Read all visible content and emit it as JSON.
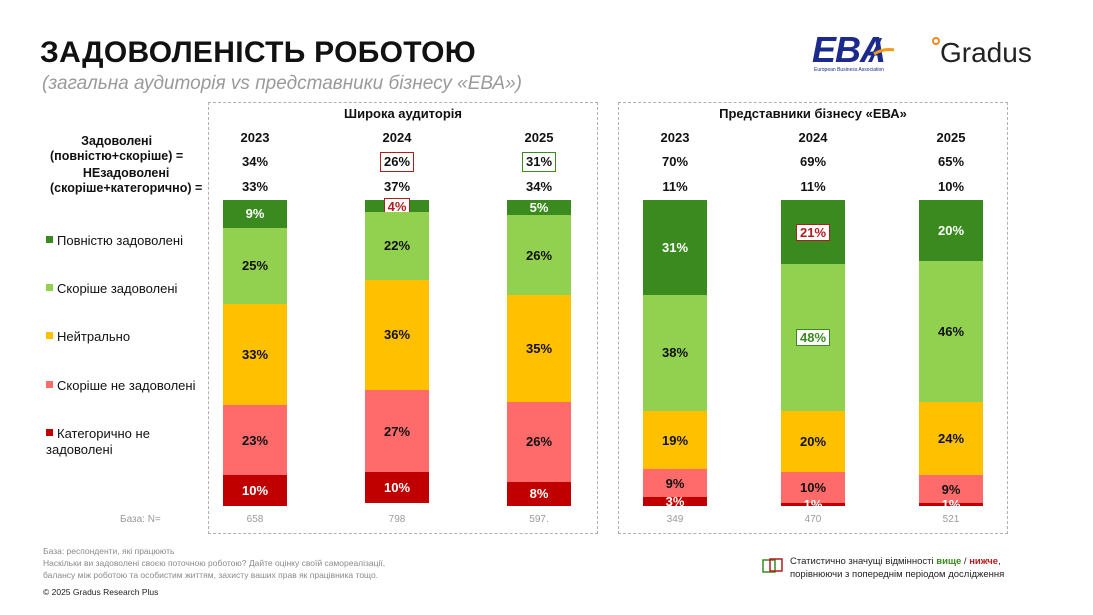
{
  "title": "ЗАДОВОЛЕНІСТЬ РОБОТОЮ",
  "subtitle": "(загальна аудиторія vs представники бізнесу «ЕВА»)",
  "logos": {
    "eba": "EBA",
    "eba_sub": "European Business Association",
    "gradus": "Gradus"
  },
  "row_labels": {
    "satisfied": "Задоволені\n(повністю+скоріше) =",
    "unsatisfied": "НЕзадоволені\n(скоріше+категорично) ="
  },
  "legend": [
    {
      "label": "Повністю задоволені",
      "color": "#3a8a1f"
    },
    {
      "label": "Скоріше задоволені",
      "color": "#92d050"
    },
    {
      "label": "Нейтрально",
      "color": "#ffc000"
    },
    {
      "label": "Скоріше не задоволені",
      "color": "#ff6b6b"
    },
    {
      "label": "Категорично не задоволені",
      "color": "#c00000"
    }
  ],
  "base_label": "База: N=",
  "notes": {
    "base": "База: респонденти, які працюють",
    "q1": "Наскільки ви задоволені своєю поточною роботою? Дайте оцінку своїй самореалізації,",
    "q2": "балансу між роботою та особистим життям, захисту ваших прав як працівника тощо.",
    "copyright": "© 2025 Gradus Research Plus"
  },
  "significance": {
    "line1_pre": "Статистично значущі відмінності ",
    "higher": "вище",
    "sep": " / ",
    "lower": "нижче",
    "line1_post": ",",
    "line2": "порівнюючи з попереднім періодом дослідження"
  },
  "chart_data": [
    {
      "type": "bar",
      "stacked": true,
      "panel_title": "Широка аудиторія",
      "categories": [
        "2023",
        "2024",
        "2025"
      ],
      "series": [
        {
          "name": "Повністю задоволені",
          "values": [
            9,
            4,
            5
          ]
        },
        {
          "name": "Скоріше задоволені",
          "values": [
            25,
            22,
            26
          ]
        },
        {
          "name": "Нейтрально",
          "values": [
            33,
            36,
            35
          ]
        },
        {
          "name": "Скоріше не задоволені",
          "values": [
            23,
            27,
            26
          ]
        },
        {
          "name": "Категорично не задоволені",
          "values": [
            10,
            10,
            8
          ]
        }
      ],
      "labels": [
        [
          "9%",
          "4%",
          "5%"
        ],
        [
          "25%",
          "22%",
          "26%"
        ],
        [
          "33%",
          "36%",
          "35%"
        ],
        [
          "23%",
          "27%",
          "26%"
        ],
        [
          "10%",
          "10%",
          "8%"
        ]
      ],
      "satisfied": [
        "34%",
        "26%",
        "31%"
      ],
      "unsatisfied": [
        "33%",
        "37%",
        "34%"
      ],
      "satisfied_marks": [
        "",
        "lower",
        "higher"
      ],
      "segment_marks": [
        [
          "",
          "lower",
          ""
        ],
        [
          "",
          "",
          ""
        ],
        [
          "",
          "",
          ""
        ],
        [
          "",
          "",
          ""
        ],
        [
          "",
          "",
          ""
        ]
      ],
      "base": [
        "658",
        "798",
        "597."
      ]
    },
    {
      "type": "bar",
      "stacked": true,
      "panel_title": "Представники бізнесу «ЕВА»",
      "categories": [
        "2023",
        "2024",
        "2025"
      ],
      "series": [
        {
          "name": "Повністю задоволені",
          "values": [
            31,
            21,
            20
          ]
        },
        {
          "name": "Скоріше задоволені",
          "values": [
            38,
            48,
            46
          ]
        },
        {
          "name": "Нейтрально",
          "values": [
            19,
            20,
            24
          ]
        },
        {
          "name": "Скоріше не задоволені",
          "values": [
            9,
            10,
            9
          ]
        },
        {
          "name": "Категорично не задоволені",
          "values": [
            3,
            1,
            1
          ]
        }
      ],
      "labels": [
        [
          "31%",
          "21%",
          "20%"
        ],
        [
          "38%",
          "48%",
          "46%"
        ],
        [
          "19%",
          "20%",
          "24%"
        ],
        [
          "9%",
          "10%",
          "9%"
        ],
        [
          "3%",
          "1%",
          "1%"
        ]
      ],
      "satisfied": [
        "70%",
        "69%",
        "65%"
      ],
      "unsatisfied": [
        "11%",
        "11%",
        "10%"
      ],
      "satisfied_marks": [
        "",
        "",
        ""
      ],
      "segment_marks": [
        [
          "",
          "lower",
          ""
        ],
        [
          "",
          "higher",
          ""
        ],
        [
          "",
          "",
          ""
        ],
        [
          "",
          "",
          ""
        ],
        [
          "",
          "",
          ""
        ]
      ],
      "base": [
        "349",
        "470",
        "521"
      ]
    }
  ]
}
